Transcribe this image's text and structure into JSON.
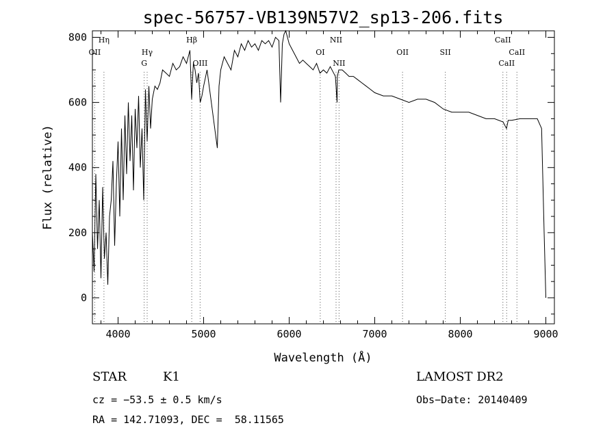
{
  "chart_data": {
    "type": "line",
    "title": "spec-56757-VB139N57V2_sp13-206.fits",
    "xlabel": "Wavelength (Å)",
    "ylabel": "Flux (relative)",
    "xlim": [
      3700,
      9100
    ],
    "ylim": [
      -80,
      820
    ],
    "xticks": [
      4000,
      5000,
      6000,
      7000,
      8000,
      9000
    ],
    "xtick_labels": [
      "4000",
      "5000",
      "6000",
      "7000",
      "8000",
      "9000"
    ],
    "yticks": [
      0,
      200,
      400,
      600,
      800
    ],
    "ytick_labels": [
      "0",
      "200",
      "400",
      "600",
      "800"
    ],
    "grid": false,
    "series": [
      {
        "x": [
          3700,
          3720,
          3740,
          3760,
          3780,
          3800,
          3820,
          3840,
          3860,
          3880,
          3900,
          3920,
          3940,
          3960,
          3980,
          4000,
          4020,
          4040,
          4060,
          4080,
          4100,
          4120,
          4140,
          4160,
          4180,
          4200,
          4220,
          4240,
          4260,
          4280,
          4300,
          4320,
          4340,
          4360,
          4380,
          4400,
          4430,
          4460,
          4490,
          4520,
          4560,
          4600,
          4640,
          4680,
          4720,
          4760,
          4800,
          4840,
          4860,
          4880,
          4900,
          4920,
          4940,
          4960,
          4980,
          5000,
          5040,
          5080,
          5120,
          5160,
          5180,
          5200,
          5240,
          5280,
          5320,
          5360,
          5400,
          5440,
          5480,
          5520,
          5560,
          5600,
          5640,
          5680,
          5720,
          5760,
          5800,
          5840,
          5880,
          5900,
          5920,
          5940,
          5960,
          5980,
          6000,
          6040,
          6080,
          6120,
          6160,
          6200,
          6240,
          6280,
          6320,
          6360,
          6400,
          6440,
          6480,
          6520,
          6540,
          6560,
          6563,
          6580,
          6620,
          6660,
          6700,
          6750,
          6800,
          6850,
          6900,
          6950,
          7000,
          7100,
          7200,
          7300,
          7400,
          7500,
          7600,
          7700,
          7800,
          7900,
          8000,
          8100,
          8200,
          8300,
          8400,
          8500,
          8540,
          8560,
          8600,
          8700,
          8800,
          8900,
          8950,
          8980,
          9000
        ],
        "values": [
          200,
          80,
          380,
          150,
          300,
          60,
          340,
          120,
          200,
          40,
          250,
          300,
          420,
          160,
          350,
          480,
          250,
          520,
          300,
          560,
          380,
          600,
          420,
          560,
          330,
          580,
          460,
          620,
          400,
          520,
          300,
          640,
          480,
          650,
          520,
          610,
          650,
          640,
          660,
          700,
          690,
          680,
          720,
          700,
          710,
          740,
          720,
          760,
          610,
          720,
          700,
          660,
          690,
          600,
          620,
          650,
          700,
          620,
          540,
          460,
          650,
          700,
          740,
          720,
          700,
          760,
          740,
          780,
          760,
          790,
          770,
          780,
          760,
          790,
          780,
          790,
          770,
          800,
          790,
          600,
          780,
          810,
          820,
          800,
          780,
          760,
          740,
          720,
          730,
          720,
          710,
          700,
          720,
          690,
          700,
          690,
          710,
          690,
          680,
          600,
          680,
          700,
          700,
          690,
          680,
          680,
          670,
          660,
          650,
          640,
          630,
          620,
          620,
          610,
          600,
          610,
          610,
          600,
          580,
          570,
          570,
          570,
          560,
          550,
          550,
          540,
          520,
          545,
          545,
          550,
          550,
          550,
          520,
          200,
          0
        ]
      }
    ],
    "annotations": [
      {
        "label": "OII",
        "x": 3727,
        "row": 2
      },
      {
        "label": "Hη",
        "x": 3835,
        "row": 1
      },
      {
        "label": "Hγ",
        "x": 4340,
        "row": 2
      },
      {
        "label": "G",
        "x": 4305,
        "row": 3
      },
      {
        "label": "Hβ",
        "x": 4861,
        "row": 1
      },
      {
        "label": "OIII",
        "x": 4959,
        "row": 3
      },
      {
        "label": "OI",
        "x": 6363,
        "row": 2
      },
      {
        "label": "NII",
        "x": 6548,
        "row": 1
      },
      {
        "label": "NII",
        "x": 6583,
        "row": 3
      },
      {
        "label": "OII",
        "x": 7325,
        "row": 2
      },
      {
        "label": "SII",
        "x": 7825,
        "row": 2
      },
      {
        "label": "CaII",
        "x": 8498,
        "row": 1
      },
      {
        "label": "CaII",
        "x": 8542,
        "row": 3
      },
      {
        "label": "CaII",
        "x": 8662,
        "row": 2
      }
    ],
    "colors": {
      "line": "#000000",
      "marker_lines": "#555555"
    }
  },
  "info": {
    "object_class": "STAR",
    "subclass": "K1",
    "survey": "LAMOST DR2",
    "cz": "cz = −53.5 ± 0.5 km/s",
    "obs_date": "Obs−Date: 20140409",
    "coords": "RA = 142.71093, DEC =  58.11565"
  }
}
